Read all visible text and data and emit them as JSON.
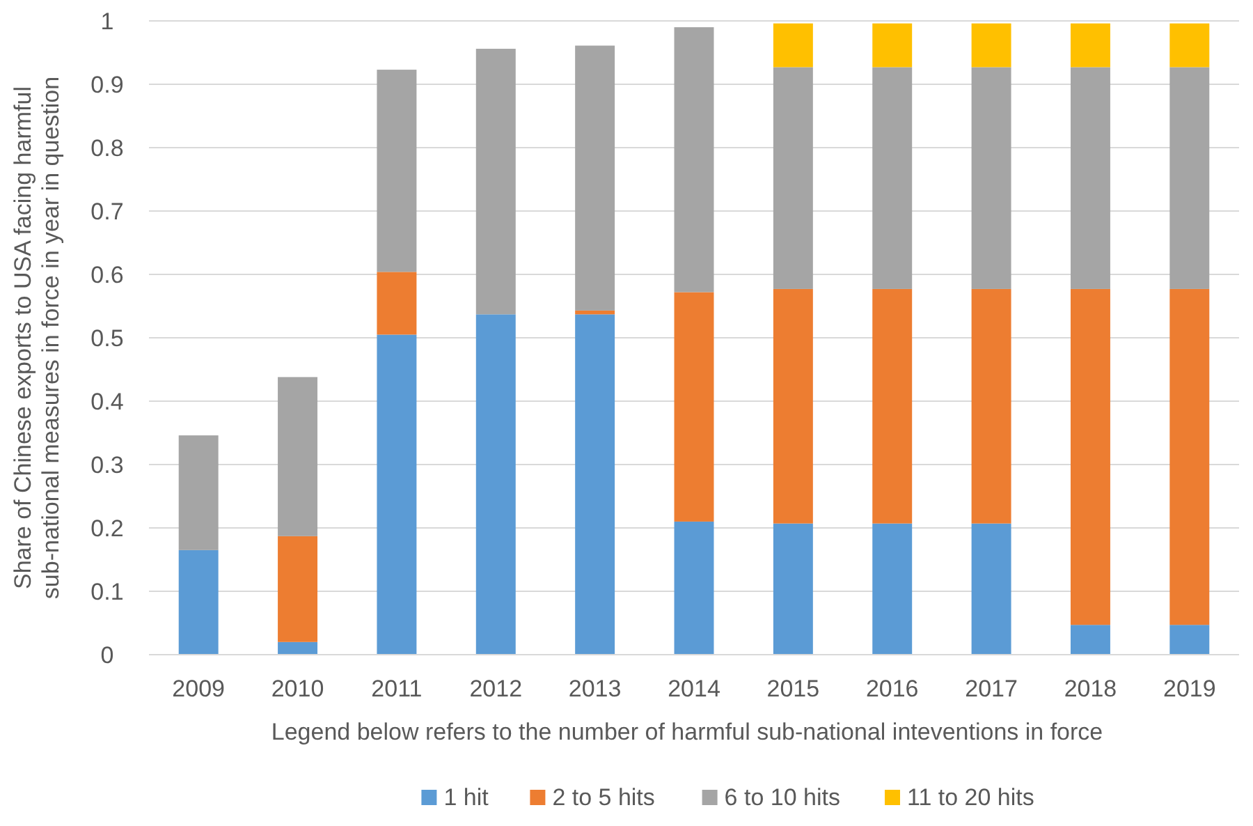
{
  "chart_data": {
    "type": "bar",
    "stacked": true,
    "categories": [
      "2009",
      "2010",
      "2011",
      "2012",
      "2013",
      "2014",
      "2015",
      "2016",
      "2017",
      "2018",
      "2019"
    ],
    "series": [
      {
        "name": "1 hit",
        "color": "#5b9bd5",
        "values": [
          0.165,
          0.02,
          0.505,
          0.537,
          0.537,
          0.21,
          0.207,
          0.207,
          0.207,
          0.047,
          0.047
        ]
      },
      {
        "name": "2 to 5 hits",
        "color": "#ed7d31",
        "values": [
          0,
          0.167,
          0.099,
          0,
          0.006,
          0.362,
          0.37,
          0.37,
          0.37,
          0.53,
          0.53
        ]
      },
      {
        "name": "6 to 10 hits",
        "color": "#a5a5a5",
        "values": [
          0.181,
          0.251,
          0.319,
          0.419,
          0.418,
          0.418,
          0.35,
          0.35,
          0.35,
          0.35,
          0.35
        ]
      },
      {
        "name": "11 to 20 hits",
        "color": "#ffc000",
        "values": [
          0,
          0,
          0,
          0,
          0,
          0,
          0.069,
          0.069,
          0.069,
          0.069,
          0.069
        ]
      }
    ],
    "ylabel": "Share of Chinese exports to USA facing harmful sub-national measures in force in year in question",
    "xlabel": "Legend below refers to the number of harmful sub-national inteventions in force",
    "ylim": [
      0,
      1
    ],
    "yticks": [
      0,
      0.1,
      0.2,
      0.3,
      0.4,
      0.5,
      0.6,
      0.7,
      0.8,
      0.9,
      1
    ],
    "grid": "y",
    "legend": "bottom"
  }
}
